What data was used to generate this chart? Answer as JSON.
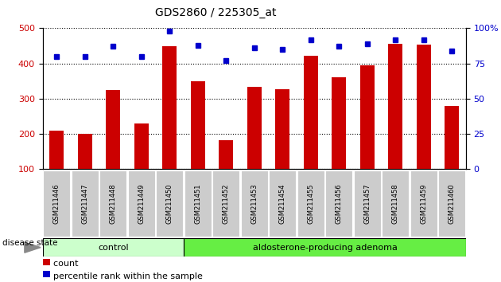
{
  "title": "GDS2860 / 225305_at",
  "categories": [
    "GSM211446",
    "GSM211447",
    "GSM211448",
    "GSM211449",
    "GSM211450",
    "GSM211451",
    "GSM211452",
    "GSM211453",
    "GSM211454",
    "GSM211455",
    "GSM211456",
    "GSM211457",
    "GSM211458",
    "GSM211459",
    "GSM211460"
  ],
  "counts": [
    210,
    200,
    325,
    230,
    450,
    350,
    183,
    333,
    327,
    422,
    360,
    395,
    455,
    453,
    280
  ],
  "percentiles": [
    80,
    80,
    87,
    80,
    98,
    88,
    77,
    86,
    85,
    92,
    87,
    89,
    92,
    92,
    84
  ],
  "control_count": 5,
  "adenoma_count": 10,
  "ylim_left": [
    100,
    500
  ],
  "ylim_right": [
    0,
    100
  ],
  "yticks_left": [
    100,
    200,
    300,
    400,
    500
  ],
  "yticks_right": [
    0,
    25,
    50,
    75,
    100
  ],
  "ytick_right_labels": [
    "0",
    "25",
    "50",
    "75",
    "100%"
  ],
  "bar_color": "#cc0000",
  "dot_color": "#0000cc",
  "control_bg": "#ccffcc",
  "adenoma_bg": "#66ee44",
  "tick_label_bg": "#cccccc",
  "legend_count_color": "#cc0000",
  "legend_pct_color": "#0000cc",
  "disease_state_label": "disease state",
  "control_label": "control",
  "adenoma_label": "aldosterone-producing adenoma",
  "legend_count": "count",
  "legend_pct": "percentile rank within the sample"
}
